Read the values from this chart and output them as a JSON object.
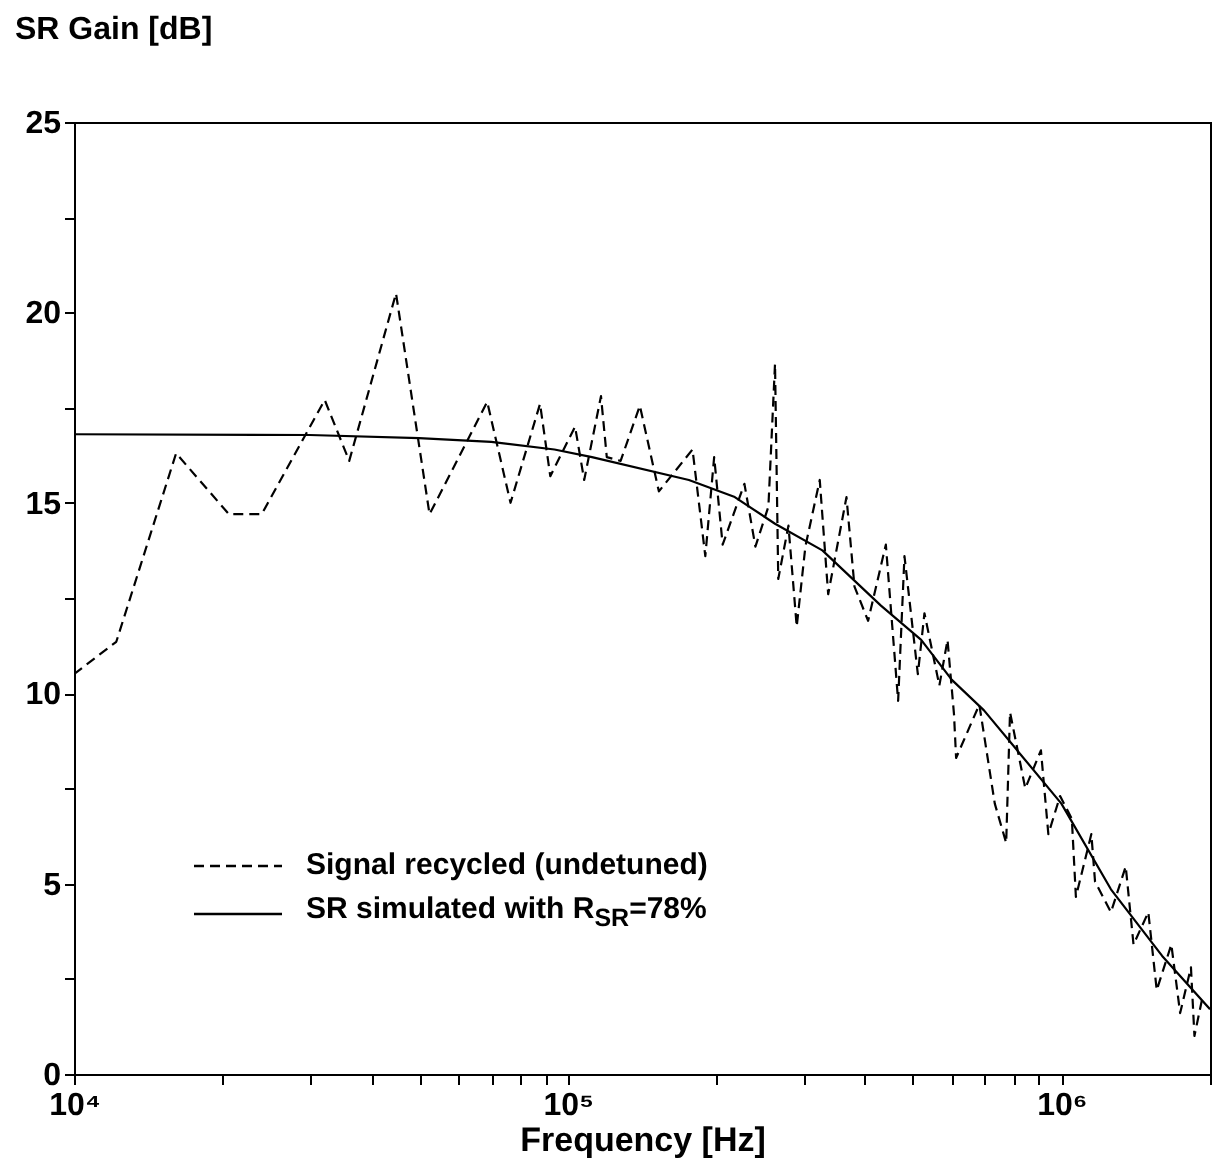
{
  "chart_data": {
    "type": "line",
    "xlabel": "Frequency [Hz]",
    "ylabel": "SR Gain [dB]",
    "log": "x",
    "xlim": [
      10000,
      2000000
    ],
    "xticks": [
      {
        "value": 10000,
        "label": "10⁴"
      },
      {
        "value": 20000,
        "label": null
      },
      {
        "value": 30000,
        "label": null
      },
      {
        "value": 40000,
        "label": null
      },
      {
        "value": 50000,
        "label": null
      },
      {
        "value": 60000,
        "label": null
      },
      {
        "value": 70000,
        "label": null
      },
      {
        "value": 80000,
        "label": null
      },
      {
        "value": 90000,
        "label": null
      },
      {
        "value": 100000,
        "label": "10⁵"
      },
      {
        "value": 200000,
        "label": null
      },
      {
        "value": 300000,
        "label": null
      },
      {
        "value": 400000,
        "label": null
      },
      {
        "value": 500000,
        "label": null
      },
      {
        "value": 600000,
        "label": null
      },
      {
        "value": 700000,
        "label": null
      },
      {
        "value": 800000,
        "label": null
      },
      {
        "value": 900000,
        "label": null
      },
      {
        "value": 1000000,
        "label": "10⁶"
      },
      {
        "value": 2000000,
        "label": null
      }
    ],
    "ylim": [
      0,
      25
    ],
    "yticks": [
      0,
      {
        "value": 2.5,
        "label": null
      },
      5,
      {
        "value": 7.5,
        "label": null
      },
      10,
      {
        "value": 12.5,
        "label": null
      },
      15,
      {
        "value": 17.5,
        "label": null
      },
      20,
      {
        "value": 22.5,
        "label": null
      },
      25
    ],
    "legend": "bottom left",
    "marker": "none",
    "series": [
      {
        "name": "Signal recycled (undetuned)",
        "color": "#000000",
        "line_style": "dashed",
        "x": [
          10000,
          12180,
          16100,
          20600,
          24000,
          32200,
          36100,
          44900,
          52500,
          68700,
          76600,
          87900,
          92200,
          103500,
          108000,
          116800,
          120000,
          128000,
          140000,
          153000,
          179000,
          190000,
          198000,
          206000,
          228000,
          240000,
          255000,
          263000,
          267000,
          280000,
          291000,
          303000,
          324000,
          337000,
          367000,
          381000,
          406000,
          441000,
          467000,
          481000,
          512000,
          528000,
          566000,
          588000,
          606000,
          612000,
          682000,
          733000,
          773000,
          787000,
          845000,
          909000,
          941000,
          994000,
          1050000,
          1070000,
          1150000,
          1170000,
          1260000,
          1350000,
          1400000,
          1500000,
          1560000,
          1670000,
          1740000,
          1830000,
          1860000,
          1930000
        ],
        "values": [
          10.5,
          11.35,
          16.3,
          14.7,
          14.7,
          17.7,
          16.1,
          20.5,
          14.7,
          17.65,
          15.0,
          17.6,
          15.7,
          17.0,
          15.6,
          17.8,
          16.2,
          16.1,
          17.55,
          15.3,
          16.4,
          13.6,
          16.2,
          13.9,
          15.5,
          13.85,
          14.9,
          18.65,
          13.0,
          14.4,
          11.75,
          13.85,
          15.6,
          12.6,
          15.15,
          12.8,
          11.9,
          13.9,
          9.8,
          13.6,
          10.5,
          12.1,
          10.2,
          11.4,
          9.45,
          8.3,
          9.7,
          7.1,
          6.07,
          9.5,
          7.5,
          8.5,
          6.3,
          7.3,
          6.7,
          4.65,
          6.3,
          5.05,
          4.25,
          5.45,
          3.4,
          4.25,
          2.2,
          3.4,
          1.6,
          2.8,
          1.0,
          2.0
        ]
      },
      {
        "name": "SR simulated with R$_{SR}$=78%",
        "color": "#000000",
        "line_style": "solid",
        "x": [
          10000,
          30000,
          50000,
          70000,
          94000,
          112000,
          176000,
          218000,
          263000,
          328000,
          431000,
          520000,
          600000,
          697000,
          1000000,
          1260000,
          1600000,
          2000000
        ],
        "values": [
          16.8,
          16.78,
          16.7,
          16.6,
          16.4,
          16.2,
          15.6,
          15.15,
          14.45,
          13.75,
          12.3,
          11.4,
          10.35,
          9.55,
          7.1,
          4.85,
          3.1,
          1.7
        ]
      }
    ]
  }
}
